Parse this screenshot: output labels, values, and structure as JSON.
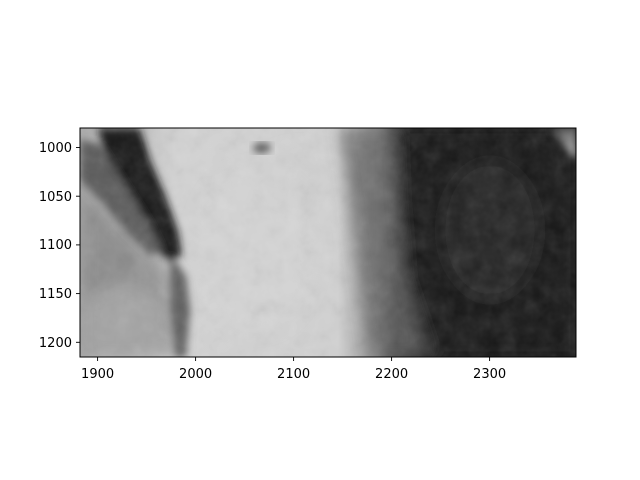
{
  "figure": {
    "background_color": "#ffffff",
    "image": {
      "kind": "grayscale image (imshow)",
      "colormap": "gray",
      "x_extent": [
        1882,
        2388
      ],
      "y_extent": [
        1215,
        980
      ],
      "y_axis_inverted": true,
      "content": "grayscale scene: dark streak on the left, light central band, very dark region on the right"
    },
    "x_axis": {
      "ticks": [
        1900,
        2000,
        2100,
        2200,
        2300
      ],
      "tick_labels": [
        "1900",
        "2000",
        "2100",
        "2200",
        "2300"
      ]
    },
    "y_axis": {
      "ticks": [
        1000,
        1050,
        1100,
        1150,
        1200
      ],
      "tick_labels": [
        "1000",
        "1050",
        "1100",
        "1150",
        "1200"
      ]
    }
  }
}
